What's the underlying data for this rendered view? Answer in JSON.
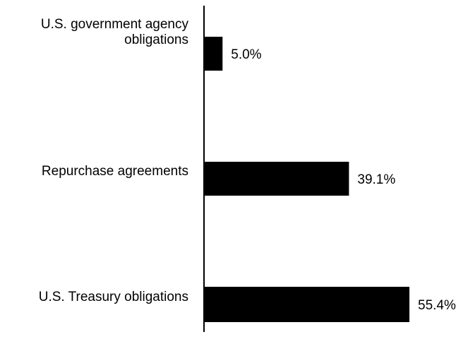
{
  "chart_data": {
    "type": "bar",
    "orientation": "horizontal",
    "categories": [
      [
        "U.S. government agency",
        "obligations"
      ],
      [
        "Repurchase agreements"
      ],
      [
        "U.S. Treasury obligations"
      ]
    ],
    "values": [
      5.0,
      39.1,
      55.4
    ],
    "value_labels": [
      "5.0%",
      "39.1%",
      "55.4%"
    ],
    "xlim": [
      0,
      55.4
    ],
    "grid": false,
    "legend": "none",
    "bar_color": "#000000",
    "text_color": "#000000",
    "axis_color": "#000000"
  }
}
